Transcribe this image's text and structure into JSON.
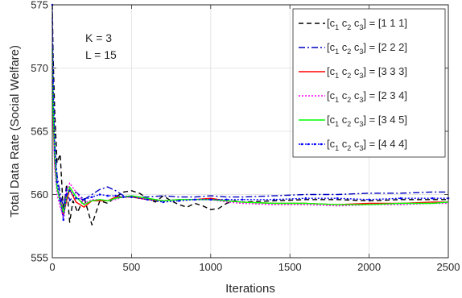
{
  "chart_data": {
    "type": "line",
    "xlabel": "Iterations",
    "ylabel": "Total Data Rate (Social Welfare)",
    "xlim": [
      0,
      2500
    ],
    "ylim": [
      555,
      575
    ],
    "xticks": [
      "0",
      "500",
      "1000",
      "1500",
      "2000",
      "2500"
    ],
    "yticks": [
      "555",
      "560",
      "565",
      "570",
      "575"
    ],
    "grid": true,
    "legend_position": "top-right",
    "annotations": [
      "K = 3",
      "L = 15"
    ],
    "series": [
      {
        "name": "[c1 c2 c3] = [1 1 1]",
        "legend": {
          "pre": "[c",
          "post": "] = [1 1 1]"
        },
        "color": "#000000",
        "dash": "6,4",
        "marker": "",
        "x": [
          0,
          5,
          15,
          30,
          50,
          70,
          90,
          110,
          130,
          160,
          200,
          250,
          300,
          350,
          400,
          450,
          500,
          550,
          600,
          650,
          700,
          750,
          800,
          850,
          900,
          950,
          1000,
          1050,
          1100,
          1150,
          1200,
          1400,
          1600,
          1800,
          2000,
          2200,
          2400,
          2500
        ],
        "y": [
          575.0,
          571.0,
          566.5,
          562.5,
          563.2,
          558.5,
          560.8,
          557.8,
          559.5,
          558.6,
          559.8,
          557.6,
          559.5,
          559.3,
          559.8,
          560.2,
          560.3,
          560.1,
          559.7,
          559.4,
          559.9,
          559.5,
          559.2,
          559.0,
          559.3,
          559.1,
          558.8,
          558.9,
          559.3,
          559.5,
          559.4,
          559.5,
          559.6,
          559.6,
          559.5,
          559.6,
          559.6,
          559.6
        ]
      },
      {
        "name": "[c1 c2 c3] = [2 2 2]",
        "legend": {
          "pre": "[c",
          "post": "] = [2 2 2]"
        },
        "color": "#0000bf",
        "dash": "8,3,2,3",
        "marker": "",
        "x": [
          0,
          5,
          15,
          30,
          50,
          70,
          90,
          110,
          150,
          200,
          250,
          300,
          350,
          400,
          450,
          500,
          600,
          700,
          800,
          900,
          1000,
          1100,
          1200,
          1400,
          1600,
          1800,
          2000,
          2200,
          2400,
          2500
        ],
        "y": [
          574.0,
          568.0,
          564.0,
          561.5,
          560.0,
          559.0,
          560.5,
          559.5,
          560.2,
          559.6,
          560.0,
          560.4,
          560.6,
          560.3,
          559.9,
          559.8,
          559.8,
          559.9,
          559.8,
          559.8,
          559.9,
          559.8,
          559.8,
          559.9,
          560.0,
          560.0,
          560.1,
          560.1,
          560.2,
          560.2
        ]
      },
      {
        "name": "[c1 c2 c3] = [3 3 3]",
        "legend": {
          "pre": "[c",
          "post": "] = [3 3 3]"
        },
        "color": "#ff0000",
        "dash": "",
        "marker": "",
        "x": [
          0,
          5,
          15,
          30,
          50,
          70,
          90,
          110,
          150,
          200,
          250,
          300,
          350,
          400,
          450,
          500,
          600,
          700,
          800,
          900,
          1000,
          1100,
          1200,
          1400,
          1600,
          1800,
          2000,
          2200,
          2400,
          2500
        ],
        "y": [
          569.0,
          566.0,
          562.5,
          560.5,
          559.6,
          558.4,
          559.5,
          560.4,
          559.4,
          559.0,
          559.5,
          559.5,
          559.5,
          559.8,
          559.8,
          559.8,
          559.6,
          559.5,
          559.6,
          559.6,
          559.7,
          559.5,
          559.4,
          559.3,
          559.3,
          559.2,
          559.3,
          559.3,
          559.4,
          559.4
        ]
      },
      {
        "name": "[c1 c2 c3] = [2 3 4]",
        "legend": {
          "pre": "[c",
          "post": "] = [2 3 4]"
        },
        "color": "#ff00ff",
        "dash": "2,2",
        "marker": "",
        "x": [
          0,
          5,
          15,
          30,
          50,
          70,
          90,
          110,
          150,
          200,
          250,
          300,
          350,
          400,
          450,
          500,
          600,
          700,
          800,
          900,
          1000,
          1100,
          1200,
          1400,
          1600,
          1800,
          2000,
          2200,
          2400,
          2500
        ],
        "y": [
          570.0,
          566.0,
          562.0,
          560.0,
          559.0,
          558.2,
          560.2,
          560.9,
          560.2,
          559.3,
          559.6,
          559.6,
          559.5,
          559.6,
          559.8,
          559.9,
          559.7,
          559.5,
          559.6,
          559.6,
          559.6,
          559.4,
          559.3,
          559.2,
          559.2,
          559.1,
          559.2,
          559.2,
          559.3,
          559.3
        ]
      },
      {
        "name": "[c1 c2 c3] = [3 4 5]",
        "legend": {
          "pre": "[c",
          "post": "] = [3 4 5]"
        },
        "color": "#00ff00",
        "dash": "",
        "marker": "",
        "x": [
          0,
          5,
          15,
          30,
          50,
          70,
          90,
          110,
          150,
          200,
          250,
          300,
          350,
          400,
          450,
          500,
          600,
          700,
          800,
          900,
          1000,
          1100,
          1200,
          1400,
          1600,
          1800,
          2000,
          2200,
          2400,
          2500
        ],
        "y": [
          571.5,
          567.0,
          563.0,
          560.5,
          559.4,
          558.6,
          559.8,
          560.6,
          559.8,
          559.2,
          559.5,
          559.6,
          559.5,
          559.7,
          559.8,
          559.9,
          559.7,
          559.5,
          559.6,
          559.6,
          559.6,
          559.5,
          559.4,
          559.3,
          559.3,
          559.2,
          559.2,
          559.3,
          559.3,
          559.4
        ]
      },
      {
        "name": "[c1 c2 c3] = [4 4 4]",
        "legend": {
          "pre": "[c",
          "post": "] = [4 4 4]"
        },
        "color": "#0000ff",
        "dash": "2,2",
        "marker": "dot",
        "x": [
          0,
          5,
          15,
          30,
          50,
          70,
          90,
          110,
          150,
          200,
          250,
          300,
          350,
          400,
          450,
          500,
          600,
          700,
          800,
          900,
          1000,
          1100,
          1200,
          1400,
          1600,
          1800,
          2000,
          2200,
          2400,
          2500
        ],
        "y": [
          575.0,
          569.0,
          563.5,
          561.0,
          559.5,
          558.0,
          560.0,
          560.3,
          559.7,
          559.6,
          559.8,
          560.0,
          559.9,
          559.9,
          559.8,
          559.8,
          559.6,
          559.4,
          559.5,
          559.6,
          559.6,
          559.6,
          559.6,
          559.6,
          559.7,
          559.7,
          559.6,
          559.7,
          559.7,
          559.7
        ]
      }
    ]
  }
}
